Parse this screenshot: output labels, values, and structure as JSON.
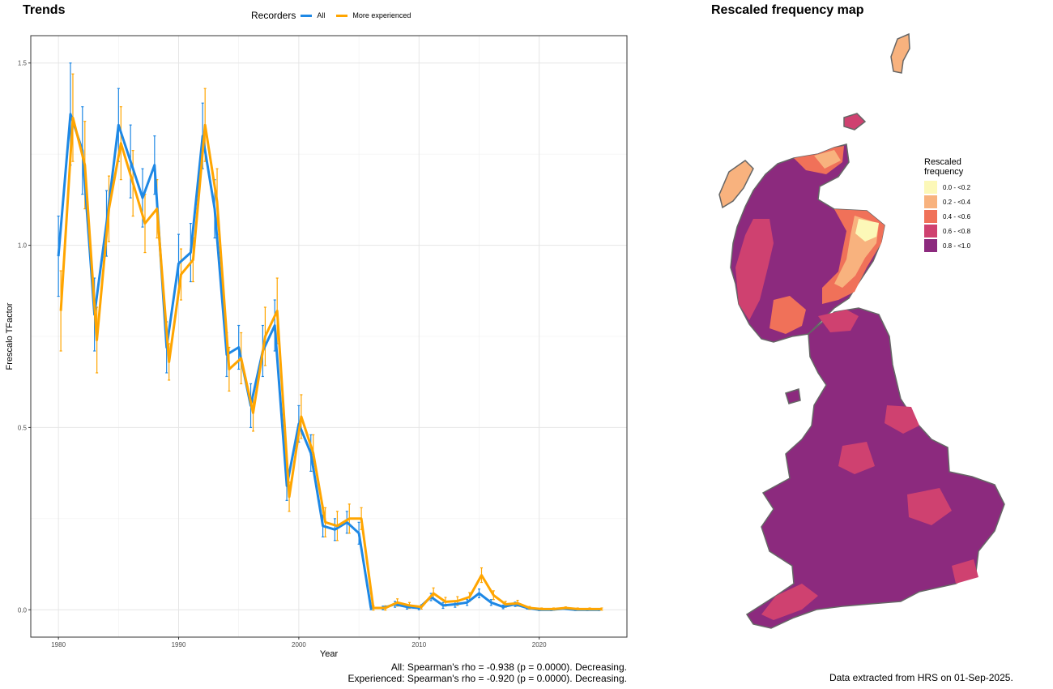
{
  "trends_title": "Trends",
  "map_title": "Rescaled frequency map",
  "legend": {
    "title": "Recorders",
    "items": [
      {
        "label": "All",
        "color": "#1E88E5"
      },
      {
        "label": "More experienced",
        "color": "#FFA500"
      }
    ]
  },
  "stats": {
    "all": "All: Spearman's rho = -0.938 (p = 0.0000). Decreasing.",
    "experienced": "Experienced: Spearman's rho = -0.920 (p = 0.0000). Decreasing."
  },
  "credit": "Data extracted from HRS on 01-Sep-2025.",
  "map_legend": {
    "title": "Rescaled frequency",
    "classes": [
      {
        "label": "0.0 - <0.2",
        "color": "#FCF8B8"
      },
      {
        "label": "0.2 - <0.4",
        "color": "#F8B27E"
      },
      {
        "label": "0.4 - <0.6",
        "color": "#F07159"
      },
      {
        "label": "0.6 - <0.8",
        "color": "#CF4170"
      },
      {
        "label": "0.8 - <1.0",
        "color": "#8C2A7E"
      }
    ]
  },
  "chart_data": {
    "type": "line",
    "xlabel": "Year",
    "ylabel": "Frescalo TFactor",
    "xlim": [
      1977.7,
      2027.3
    ],
    "ylim": [
      -0.075,
      1.575
    ],
    "xticks": [
      1980,
      1990,
      2000,
      2010,
      2020
    ],
    "yticks": [
      0.0,
      0.5,
      1.0,
      1.5
    ],
    "ytick_labels": [
      "0.0",
      "0.5",
      "1.0",
      "1.5"
    ],
    "grid": true,
    "x": [
      1980,
      1981,
      1982,
      1983,
      1984,
      1985,
      1986,
      1987,
      1988,
      1989,
      1990,
      1991,
      1992,
      1993,
      1994,
      1995,
      1996,
      1997,
      1998,
      1999,
      2000,
      2001,
      2002,
      2003,
      2004,
      2005,
      2006,
      2007,
      2008,
      2009,
      2010,
      2011,
      2012,
      2013,
      2014,
      2015,
      2016,
      2017,
      2018,
      2019,
      2020,
      2021,
      2022,
      2023,
      2024,
      2025
    ],
    "series": [
      {
        "name": "All",
        "color": "#1E88E5",
        "values": [
          0.97,
          1.36,
          1.26,
          0.81,
          1.06,
          1.33,
          1.23,
          1.13,
          1.22,
          0.72,
          0.95,
          0.98,
          1.3,
          1.1,
          0.7,
          0.72,
          0.56,
          0.71,
          0.78,
          0.34,
          0.51,
          0.43,
          0.23,
          0.22,
          0.24,
          0.21,
          0.005,
          0.005,
          0.015,
          0.008,
          0.005,
          0.035,
          0.012,
          0.015,
          0.02,
          0.045,
          0.02,
          0.008,
          0.015,
          0.005,
          0.0,
          0.0,
          0.003,
          0.0,
          0.0,
          0.0
        ],
        "error": [
          0.11,
          0.14,
          0.12,
          0.1,
          0.09,
          0.1,
          0.1,
          0.08,
          0.08,
          0.07,
          0.08,
          0.08,
          0.09,
          0.08,
          0.06,
          0.06,
          0.06,
          0.07,
          0.07,
          0.04,
          0.05,
          0.05,
          0.03,
          0.03,
          0.03,
          0.03,
          0.005,
          0.005,
          0.008,
          0.006,
          0.005,
          0.01,
          0.008,
          0.008,
          0.008,
          0.012,
          0.008,
          0.005,
          0.006,
          0.003,
          0.002,
          0.002,
          0.002,
          0.002,
          0.002,
          0.002
        ]
      },
      {
        "name": "More experienced",
        "color": "#FFA500",
        "values": [
          0.82,
          1.35,
          1.22,
          0.74,
          1.1,
          1.28,
          1.17,
          1.06,
          1.1,
          0.68,
          0.92,
          0.96,
          1.33,
          1.12,
          0.66,
          0.69,
          0.54,
          0.75,
          0.82,
          0.31,
          0.53,
          0.43,
          0.24,
          0.23,
          0.25,
          0.25,
          0.005,
          0.005,
          0.02,
          0.012,
          0.008,
          0.045,
          0.022,
          0.024,
          0.035,
          0.095,
          0.04,
          0.015,
          0.018,
          0.005,
          0.002,
          0.002,
          0.005,
          0.002,
          0.002,
          0.002
        ],
        "error": [
          0.11,
          0.12,
          0.12,
          0.09,
          0.09,
          0.1,
          0.09,
          0.08,
          0.08,
          0.05,
          0.07,
          0.06,
          0.1,
          0.09,
          0.06,
          0.07,
          0.05,
          0.08,
          0.09,
          0.04,
          0.06,
          0.05,
          0.04,
          0.04,
          0.04,
          0.03,
          0.006,
          0.006,
          0.01,
          0.008,
          0.006,
          0.015,
          0.012,
          0.012,
          0.012,
          0.02,
          0.012,
          0.008,
          0.008,
          0.004,
          0.003,
          0.003,
          0.003,
          0.003,
          0.003,
          0.003
        ]
      }
    ]
  }
}
